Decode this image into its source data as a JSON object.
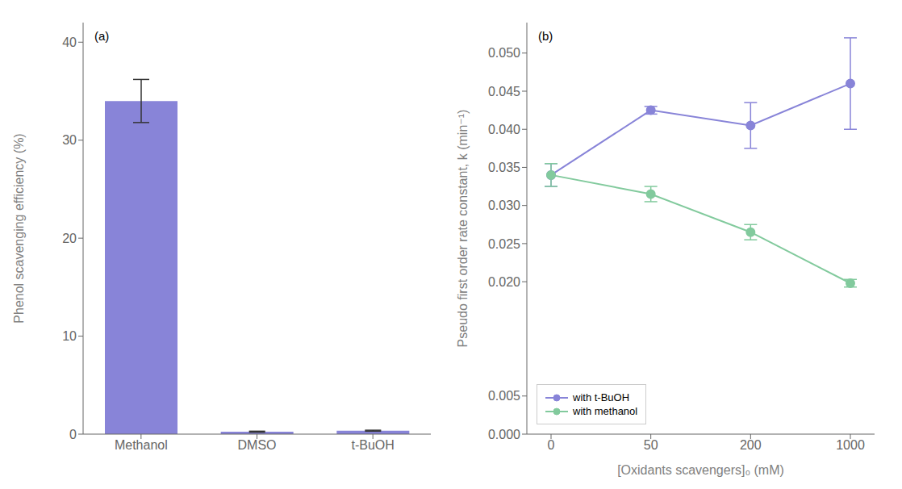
{
  "chart_data": [
    {
      "type": "bar",
      "categories": [
        "Methanol",
        "DMSO",
        "t-BuOH"
      ],
      "values": [
        34.0,
        0.25,
        0.35
      ],
      "errors": [
        2.2,
        0.05,
        0.05
      ],
      "color": "#8884d8",
      "ylabel": "Phenol scavenging efficiency (%)",
      "ylim": [
        0,
        42
      ],
      "yticks": [
        0,
        10,
        20,
        30,
        40
      ],
      "annotations": [
        "(a)"
      ],
      "grid": false
    },
    {
      "type": "line",
      "categories": [
        "0",
        "50",
        "200",
        "1000"
      ],
      "series": [
        {
          "name": "with t-BuOH",
          "color": "#8884d8",
          "marker": "circle",
          "values": [
            0.034,
            0.0425,
            0.0405,
            0.046
          ],
          "errors": [
            0.0015,
            0.0005,
            0.003,
            0.006
          ]
        },
        {
          "name": "with methanol",
          "color": "#82ca9d",
          "marker": "circle",
          "values": [
            0.034,
            0.0315,
            0.0265,
            0.0198
          ],
          "errors": [
            0.0015,
            0.001,
            0.001,
            0.0005
          ]
        }
      ],
      "xlabel": "[Oxidants scavengers]₀ (mM)",
      "ylabel": "Pseudo first order rate constant, k (min⁻¹)",
      "ylim": [
        0,
        0.054
      ],
      "yticks": [
        {
          "value": 0,
          "label": "0.000"
        },
        0.005,
        {
          "value": 0.02,
          "label": "0.020"
        },
        0.025,
        {
          "value": 0.03,
          "label": "0.030"
        },
        0.035,
        {
          "value": 0.04,
          "label": "0.040"
        },
        0.045,
        {
          "value": 0.05,
          "label": "0.050"
        }
      ],
      "legend": "lower left",
      "annotations": [
        "(b)"
      ],
      "grid": false
    }
  ]
}
